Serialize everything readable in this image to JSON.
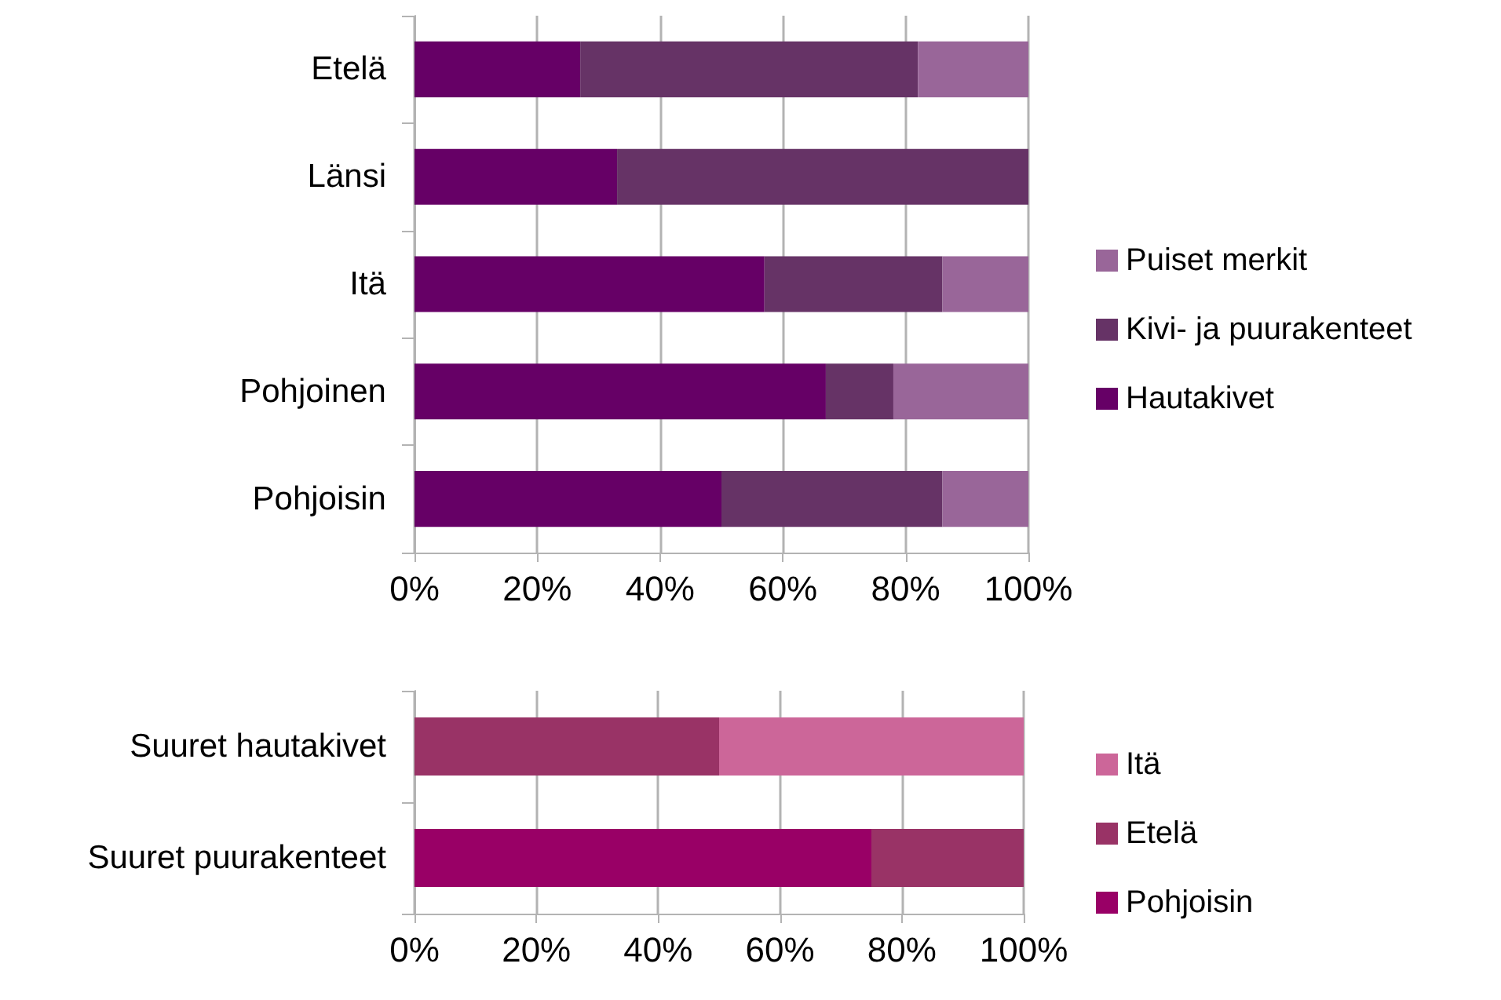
{
  "chart_data": [
    {
      "type": "bar",
      "orientation": "horizontal",
      "stacked": true,
      "categories": [
        "Etelä",
        "Länsi",
        "Itä",
        "Pohjoinen",
        "Pohjoisin"
      ],
      "series": [
        {
          "name": "Hautakivet",
          "color": "#660066",
          "values": [
            27,
            33,
            57,
            67,
            50
          ]
        },
        {
          "name": "Kivi- ja puurakenteet",
          "color": "#663366",
          "values": [
            55,
            67,
            29,
            11,
            36
          ]
        },
        {
          "name": "Puiset merkit",
          "color": "#996699",
          "values": [
            18,
            0,
            14,
            22,
            14
          ]
        }
      ],
      "xlim": [
        0,
        100
      ],
      "xticks": [
        {
          "value": 0,
          "label": "0%"
        },
        {
          "value": 20,
          "label": "20%"
        },
        {
          "value": 40,
          "label": "40%"
        },
        {
          "value": 60,
          "label": "60%"
        },
        {
          "value": 80,
          "label": "80%"
        },
        {
          "value": 100,
          "label": "100%"
        }
      ],
      "grid": "x",
      "legend": "right"
    },
    {
      "type": "bar",
      "orientation": "horizontal",
      "stacked": true,
      "categories": [
        "Suuret hautakivet",
        "Suuret puurakenteet"
      ],
      "series": [
        {
          "name": "Pohjoisin",
          "color": "#990066",
          "values": [
            0,
            75
          ]
        },
        {
          "name": "Etelä",
          "color": "#993366",
          "values": [
            50,
            25
          ]
        },
        {
          "name": "Itä",
          "color": "#cc6699",
          "values": [
            50,
            0
          ]
        }
      ],
      "xlim": [
        0,
        100
      ],
      "xticks": [
        {
          "value": 0,
          "label": "0%"
        },
        {
          "value": 20,
          "label": "20%"
        },
        {
          "value": 40,
          "label": "40%"
        },
        {
          "value": 60,
          "label": "60%"
        },
        {
          "value": 80,
          "label": "80%"
        },
        {
          "value": 100,
          "label": "100%"
        }
      ],
      "grid": "x",
      "legend": "right"
    }
  ]
}
